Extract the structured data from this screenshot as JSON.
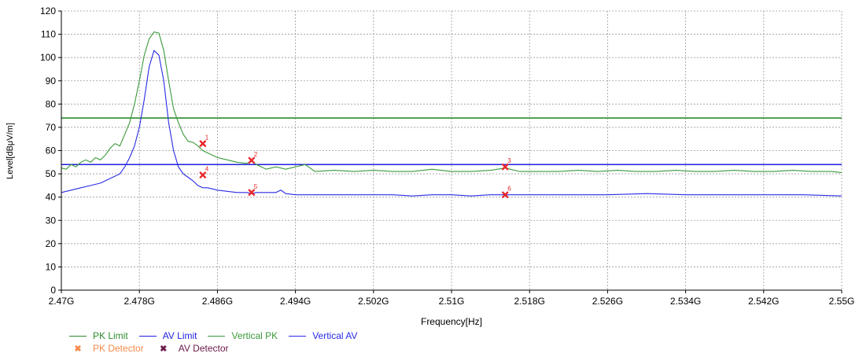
{
  "colors": {
    "pk_limit": "#2e8b2e",
    "av_limit": "#1f1fdf",
    "vertical_pk": "#3a9a3a",
    "vertical_av": "#2a2ae6",
    "pk_detector": "#f58a4a",
    "av_detector": "#6a1a4a",
    "marker": "#e8262a",
    "grid": "#9a9a9a",
    "axis": "#000000",
    "label_text": "#000000"
  },
  "chart_data": {
    "type": "line",
    "xlabel": "Frequency[Hz]",
    "ylabel": "Level[dBμV/m]",
    "xlim": [
      2.47,
      2.55
    ],
    "ylim": [
      0,
      120
    ],
    "grid": true,
    "legend_position": "bottom-left",
    "x_tick_values": [
      2.47,
      2.478,
      2.486,
      2.494,
      2.502,
      2.51,
      2.518,
      2.526,
      2.534,
      2.542,
      2.55
    ],
    "x_tick_labels": [
      "2.47G",
      "2.478G",
      "2.486G",
      "2.494G",
      "2.502G",
      "2.51G",
      "2.518G",
      "2.526G",
      "2.534G",
      "2.542G",
      "2.55G"
    ],
    "y_tick_values": [
      0,
      10,
      20,
      30,
      40,
      50,
      60,
      70,
      80,
      90,
      100,
      110,
      120
    ],
    "y_tick_labels": [
      "0",
      "10",
      "20",
      "30",
      "40",
      "50",
      "60",
      "70",
      "80",
      "90",
      "100",
      "110",
      "120"
    ],
    "limits": [
      {
        "name": "PK Limit",
        "value": 74,
        "color": "#2e8b2e"
      },
      {
        "name": "AV Limit",
        "value": 54,
        "color": "#1f1fdf"
      }
    ],
    "series": [
      {
        "name": "Vertical PK",
        "color": "#3a9a3a",
        "x": [
          2.47,
          2.4705,
          2.471,
          2.4715,
          2.472,
          2.4725,
          2.473,
          2.4735,
          2.474,
          2.4745,
          2.475,
          2.4755,
          2.476,
          2.4765,
          2.477,
          2.4775,
          2.478,
          2.4785,
          2.479,
          2.4795,
          2.48,
          2.4805,
          2.481,
          2.4815,
          2.482,
          2.4825,
          2.483,
          2.4835,
          2.484,
          2.4845,
          2.485,
          2.486,
          2.487,
          2.488,
          2.489,
          2.4895,
          2.49,
          2.491,
          2.492,
          2.493,
          2.494,
          2.495,
          2.496,
          2.498,
          2.5,
          2.502,
          2.504,
          2.506,
          2.508,
          2.51,
          2.512,
          2.514,
          2.5155,
          2.517,
          2.519,
          2.521,
          2.523,
          2.525,
          2.527,
          2.529,
          2.531,
          2.533,
          2.535,
          2.537,
          2.539,
          2.541,
          2.543,
          2.545,
          2.547,
          2.549,
          2.55
        ],
        "y": [
          52.5,
          52,
          54,
          53,
          55,
          56,
          55,
          57,
          56,
          58,
          61,
          63,
          62,
          67,
          72,
          80,
          90,
          101,
          108,
          111,
          110.5,
          103,
          90,
          78,
          72,
          67,
          64,
          63.5,
          62,
          60,
          59,
          57,
          56,
          55,
          54.5,
          55.5,
          54,
          52,
          53,
          52,
          53,
          54,
          51,
          51.5,
          51,
          51.5,
          51,
          51,
          52,
          51,
          51,
          51.5,
          52.5,
          51,
          51,
          51,
          51.5,
          51,
          51.5,
          51,
          51,
          51.5,
          51,
          51,
          51.5,
          51,
          51,
          51.5,
          51,
          51,
          50.5
        ]
      },
      {
        "name": "Vertical AV",
        "color": "#2a2ae6",
        "x": [
          2.47,
          2.471,
          2.472,
          2.473,
          2.474,
          2.475,
          2.476,
          2.4765,
          2.477,
          2.4775,
          2.478,
          2.4785,
          2.479,
          2.4795,
          2.48,
          2.4805,
          2.481,
          2.4815,
          2.482,
          2.4825,
          2.483,
          2.4835,
          2.484,
          2.4845,
          2.485,
          2.486,
          2.487,
          2.488,
          2.489,
          2.4895,
          2.49,
          2.491,
          2.492,
          2.4925,
          2.493,
          2.494,
          2.496,
          2.498,
          2.5,
          2.502,
          2.504,
          2.506,
          2.508,
          2.51,
          2.512,
          2.514,
          2.5155,
          2.518,
          2.522,
          2.526,
          2.53,
          2.534,
          2.538,
          2.542,
          2.546,
          2.55
        ],
        "y": [
          42,
          43,
          44,
          45,
          46,
          48,
          50,
          53,
          57,
          62,
          70,
          82,
          96,
          103,
          101,
          90,
          72,
          60,
          53,
          50,
          48.5,
          47,
          45,
          44,
          44,
          43,
          42.5,
          42,
          42,
          41.5,
          42,
          42,
          42,
          43,
          41.5,
          41,
          41,
          41,
          41,
          41,
          41,
          40.5,
          41,
          41,
          40.5,
          41,
          41,
          41,
          41,
          41,
          41.5,
          41,
          41,
          41,
          41,
          40.5
        ]
      }
    ],
    "markers": [
      {
        "label": "1",
        "x": 2.4845,
        "y": 63
      },
      {
        "label": "2",
        "x": 2.4895,
        "y": 55.8
      },
      {
        "label": "3",
        "x": 2.5155,
        "y": 53
      },
      {
        "label": "4",
        "x": 2.4845,
        "y": 49.5
      },
      {
        "label": "5",
        "x": 2.4895,
        "y": 42
      },
      {
        "label": "6",
        "x": 2.5155,
        "y": 41
      }
    ]
  },
  "legend": {
    "pk_limit": "PK Limit",
    "av_limit": "AV Limit",
    "vertical_pk": "Vertical PK",
    "vertical_av": "Vertical AV",
    "pk_detector": "PK Detector",
    "av_detector": "AV Detector",
    "detector_symbol": "✖"
  }
}
